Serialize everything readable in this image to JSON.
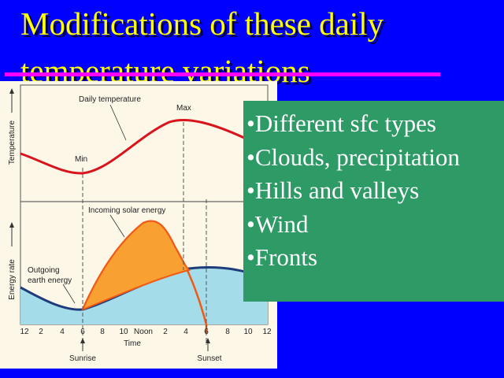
{
  "slide": {
    "title_line1": "Modifications of these daily",
    "title_line2": "temperature variations",
    "title_color": "#ffff00",
    "background_color": "#0000ff",
    "rule_color": "#ff00ff"
  },
  "bullets": {
    "box_color": "#2e9a66",
    "items": [
      "•Different sfc types",
      "•Clouds, precipitation",
      "•Hills and valleys",
      "•Wind",
      "•Fronts"
    ]
  },
  "figure": {
    "temp_axis_label": "Temperature",
    "energy_axis_label": "Energy rate",
    "daily_temp_label": "Daily temperature",
    "min_label": "Min",
    "max_label": "Max",
    "solar_label": "Incoming solar energy",
    "outgoing_label_line1": "Outgoing",
    "outgoing_label_line2": "earth energy",
    "time_label": "Time",
    "sunrise_label": "Sunrise",
    "sunset_label": "Sunset",
    "tick_labels": [
      "12",
      "2",
      "4",
      "6",
      "8",
      "10",
      "Noon",
      "2",
      "4",
      "6",
      "8",
      "10",
      "12"
    ],
    "colors": {
      "temperature_curve": "#d8141c",
      "solar": "#f8a032",
      "solar_stroke": "#f05a14",
      "outgoing_fill": "#a5dcea",
      "outgoing_stroke": "#1f3c7a"
    }
  }
}
